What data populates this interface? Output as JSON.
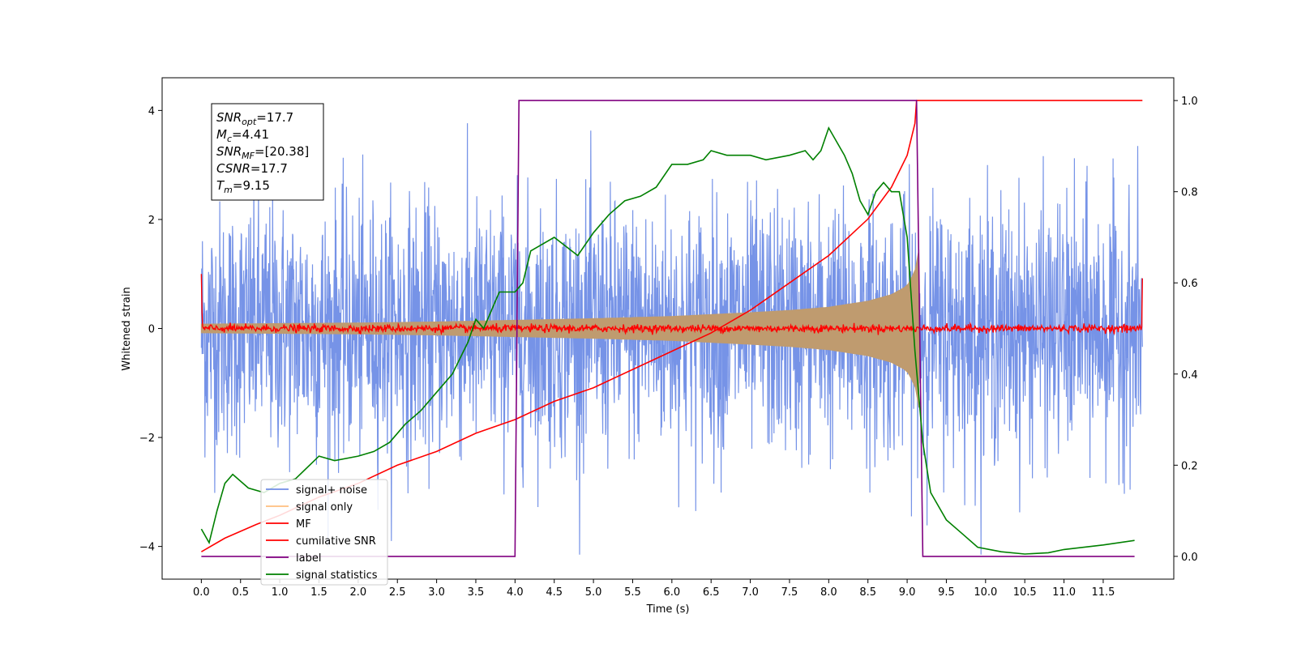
{
  "chart_data": {
    "type": "line",
    "title": "",
    "xlabel": "Time (s)",
    "ylabel_left": "Whitened strain",
    "ylabel_right": "",
    "xlim": [
      -0.5,
      12.4
    ],
    "ylim_left": [
      -4.6,
      4.6
    ],
    "ylim_right": [
      -0.05,
      1.05
    ],
    "grid": false,
    "legend_position": "lower-left",
    "x_ticks": [
      "0.0",
      "0.5",
      "1.0",
      "1.5",
      "2.0",
      "2.5",
      "3.0",
      "3.5",
      "4.0",
      "4.5",
      "5.0",
      "5.5",
      "6.0",
      "6.5",
      "7.0",
      "7.5",
      "8.0",
      "8.5",
      "9.0",
      "9.5",
      "10.0",
      "10.5",
      "11.0",
      "11.5"
    ],
    "y_ticks_left": [
      "−4",
      "−2",
      "0",
      "2",
      "4"
    ],
    "y_ticks_right": [
      "0.0",
      "0.2",
      "0.4",
      "0.6",
      "0.8",
      "1.0"
    ],
    "info_box": [
      {
        "sym": "SNR",
        "sub": "opt",
        "val": "=17.7"
      },
      {
        "sym": "M",
        "sub": "c",
        "val": "=4.41"
      },
      {
        "sym": "SNR",
        "sub": "MF",
        "val": "=[20.38]"
      },
      {
        "sym": "CSNR",
        "sub": "",
        "val": "=17.7"
      },
      {
        "sym": "T",
        "sub": "m",
        "val": "=9.15"
      }
    ],
    "series": [
      {
        "name": "signal+ noise",
        "color": "#6f8de6",
        "axis": "left",
        "kind": "noise",
        "x_range": [
          0.0,
          12.0
        ],
        "amplitude_range": [
          -4.15,
          4.15
        ]
      },
      {
        "name": "signal only",
        "color": "#bf9b6f",
        "axis": "left",
        "kind": "chirp_envelope",
        "x": [
          0.0,
          1.0,
          2.0,
          3.0,
          4.0,
          5.0,
          6.0,
          7.0,
          7.5,
          8.0,
          8.5,
          8.8,
          9.0,
          9.1,
          9.15
        ],
        "y": [
          0.08,
          0.09,
          0.1,
          0.12,
          0.15,
          0.18,
          0.22,
          0.29,
          0.33,
          0.39,
          0.5,
          0.62,
          0.78,
          1.05,
          1.45
        ]
      },
      {
        "name": "MF",
        "color": "#ff0000",
        "axis": "left",
        "kind": "noise_small",
        "x_range": [
          0.0,
          12.0
        ],
        "edge_values": [
          1.0,
          0.92
        ]
      },
      {
        "name": "cumilative SNR",
        "color": "#ff0000",
        "axis": "right",
        "x": [
          0.0,
          0.3,
          0.7,
          1.0,
          1.5,
          2.0,
          2.5,
          3.0,
          3.5,
          4.0,
          4.5,
          5.0,
          5.5,
          6.0,
          6.5,
          7.0,
          7.5,
          8.0,
          8.5,
          8.8,
          9.0,
          9.1,
          9.12,
          12.0
        ],
        "y": [
          0.01,
          0.04,
          0.07,
          0.09,
          0.13,
          0.16,
          0.2,
          0.23,
          0.27,
          0.3,
          0.34,
          0.37,
          0.41,
          0.45,
          0.49,
          0.54,
          0.6,
          0.66,
          0.74,
          0.81,
          0.88,
          0.95,
          1.0,
          1.0
        ]
      },
      {
        "name": "label",
        "color": "#800080",
        "axis": "right",
        "x": [
          0.0,
          4.0,
          4.05,
          9.12,
          9.2,
          11.9
        ],
        "y": [
          0.0,
          0.0,
          1.0,
          1.0,
          0.0,
          0.0
        ]
      },
      {
        "name": "signal statistics",
        "color": "#008000",
        "axis": "right",
        "x": [
          0.0,
          0.1,
          0.2,
          0.3,
          0.4,
          0.6,
          0.8,
          1.0,
          1.2,
          1.5,
          1.7,
          2.0,
          2.2,
          2.4,
          2.6,
          2.8,
          3.0,
          3.2,
          3.4,
          3.5,
          3.6,
          3.8,
          3.9,
          4.0,
          4.1,
          4.2,
          4.3,
          4.5,
          4.8,
          5.0,
          5.2,
          5.4,
          5.6,
          5.8,
          6.0,
          6.2,
          6.4,
          6.5,
          6.7,
          7.0,
          7.2,
          7.5,
          7.7,
          7.8,
          7.9,
          8.0,
          8.2,
          8.3,
          8.4,
          8.5,
          8.6,
          8.7,
          8.8,
          8.9,
          9.0,
          9.1,
          9.2,
          9.3,
          9.5,
          9.7,
          9.9,
          10.2,
          10.5,
          10.8,
          11.0,
          11.5,
          11.9
        ],
        "y": [
          0.06,
          0.03,
          0.1,
          0.16,
          0.18,
          0.15,
          0.14,
          0.16,
          0.17,
          0.22,
          0.21,
          0.22,
          0.23,
          0.25,
          0.29,
          0.32,
          0.36,
          0.4,
          0.47,
          0.52,
          0.5,
          0.58,
          0.58,
          0.58,
          0.6,
          0.67,
          0.68,
          0.7,
          0.66,
          0.71,
          0.75,
          0.78,
          0.79,
          0.81,
          0.86,
          0.86,
          0.87,
          0.89,
          0.88,
          0.88,
          0.87,
          0.88,
          0.89,
          0.87,
          0.89,
          0.94,
          0.88,
          0.84,
          0.78,
          0.75,
          0.8,
          0.82,
          0.8,
          0.8,
          0.7,
          0.45,
          0.25,
          0.14,
          0.08,
          0.05,
          0.02,
          0.01,
          0.005,
          0.008,
          0.015,
          0.025,
          0.035
        ]
      }
    ]
  }
}
